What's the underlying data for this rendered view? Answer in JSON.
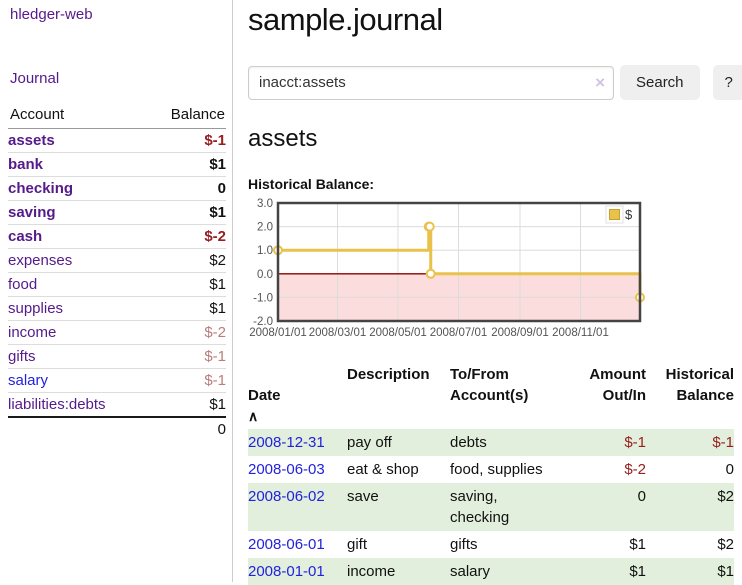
{
  "sidebar": {
    "app_title": "hledger-web",
    "journal_link": "Journal",
    "accounts": {
      "header": {
        "account": "Account",
        "balance": "Balance"
      },
      "rows": [
        {
          "name": "assets",
          "balance": "$-1"
        },
        {
          "name": "bank",
          "balance": "$1"
        },
        {
          "name": "checking",
          "balance": "0"
        },
        {
          "name": "saving",
          "balance": "$1"
        },
        {
          "name": "cash",
          "balance": "$-2"
        },
        {
          "name": "expenses",
          "balance": "$2"
        },
        {
          "name": "food",
          "balance": "$1"
        },
        {
          "name": "supplies",
          "balance": "$1"
        },
        {
          "name": "income",
          "balance": "$-2"
        },
        {
          "name": "gifts",
          "balance": "$-1"
        },
        {
          "name": "salary",
          "balance": "$-1"
        },
        {
          "name": "liabilities:debts",
          "balance": "$1"
        }
      ],
      "total": "0"
    }
  },
  "main": {
    "title": "sample.journal",
    "search": {
      "value": "inacct:assets",
      "clear_icon": "×",
      "search_button": "Search",
      "help_button": "?"
    },
    "account_heading": "assets",
    "chart_title": "Historical Balance:",
    "register": {
      "headers": {
        "date": "Date",
        "sort_indicator": "∧",
        "description": "Description",
        "tofrom": "To/From\nAccount(s)",
        "amount": "Amount\nOut/In",
        "balance": "Historical\nBalance"
      },
      "rows": [
        {
          "date": "2008-12-31",
          "description": "pay off",
          "tofrom": "debts",
          "amount": "$-1",
          "balance": "$-1"
        },
        {
          "date": "2008-06-03",
          "description": "eat & shop",
          "tofrom": "food, supplies",
          "amount": "$-2",
          "balance": "0"
        },
        {
          "date": "2008-06-02",
          "description": "save",
          "tofrom": "saving, checking",
          "amount": "0",
          "balance": "$2"
        },
        {
          "date": "2008-06-01",
          "description": "gift",
          "tofrom": "gifts",
          "amount": "$1",
          "balance": "$2"
        },
        {
          "date": "2008-01-01",
          "description": "income",
          "tofrom": "salary",
          "amount": "$1",
          "balance": "$1"
        }
      ]
    }
  },
  "chart_data": {
    "type": "line",
    "step": true,
    "title": "Historical Balance",
    "series": [
      {
        "name": "$",
        "color": "#e9c24b",
        "points": [
          [
            "2008-01-01",
            1
          ],
          [
            "2008-06-01",
            2
          ],
          [
            "2008-06-02",
            2
          ],
          [
            "2008-06-03",
            0
          ],
          [
            "2008-12-31",
            -1
          ]
        ]
      }
    ],
    "xlim": [
      "2008-01-01",
      "2008-12-31"
    ],
    "ylim": [
      -2,
      3
    ],
    "x_ticks": [
      "2008/01/01",
      "2008/03/01",
      "2008/05/01",
      "2008/07/01",
      "2008/09/01",
      "2008/11/01"
    ],
    "y_ticks": [
      3,
      2,
      1,
      0,
      -1,
      -2
    ],
    "legend": {
      "label": "$",
      "position": "top-right"
    },
    "grid": true,
    "negative_region_color": "#fbdddd",
    "zero_line_color": "#8b0000",
    "colors": {
      "line": "#e9c24b",
      "marker_fill": "#ffffff",
      "plot_border": "#444444",
      "tick_text": "#545454",
      "gridline": "#dcdcdc"
    }
  }
}
